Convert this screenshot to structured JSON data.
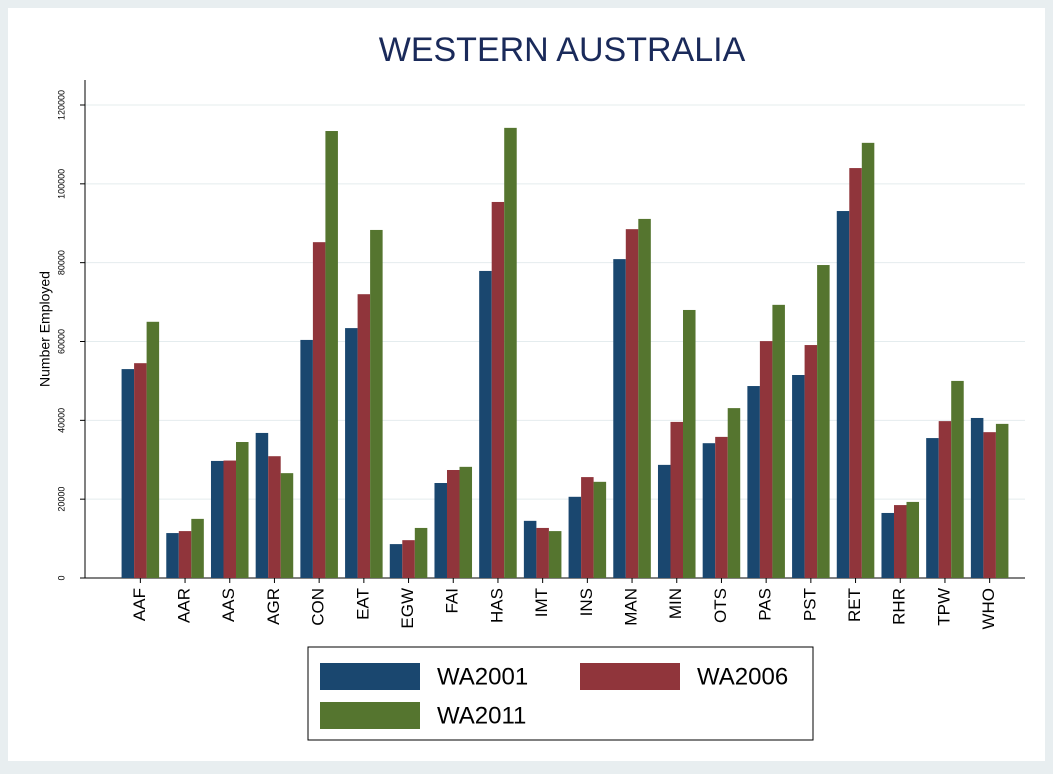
{
  "chart_data": {
    "type": "bar",
    "title": "WESTERN AUSTRALIA",
    "y_label": "Number Employed",
    "categories": [
      "AAF",
      "AAR",
      "AAS",
      "AGR",
      "CON",
      "EAT",
      "EGW",
      "FAI",
      "HAS",
      "IMT",
      "INS",
      "MAN",
      "MIN",
      "OTS",
      "PAS",
      "PST",
      "RET",
      "RHR",
      "TPW",
      "WHO"
    ],
    "series": [
      {
        "name": "WA2001",
        "color": "#1a476f",
        "values": [
          53000,
          11400,
          29700,
          36800,
          60400,
          63400,
          8600,
          24100,
          77900,
          14500,
          20600,
          80900,
          28700,
          34200,
          48700,
          51500,
          93100,
          16500,
          35500,
          40600
        ]
      },
      {
        "name": "WA2006",
        "color": "#90353b",
        "values": [
          54500,
          11900,
          29800,
          30900,
          85200,
          72000,
          9600,
          27400,
          95400,
          12700,
          25600,
          88500,
          39600,
          35800,
          60100,
          59100,
          104000,
          18500,
          39800,
          37000
        ]
      },
      {
        "name": "WA2011",
        "color": "#55752f",
        "values": [
          65000,
          15000,
          34500,
          26600,
          113400,
          88300,
          12700,
          28200,
          114200,
          11900,
          24400,
          91100,
          68000,
          43100,
          69300,
          79400,
          110400,
          19300,
          50000,
          39100
        ]
      }
    ],
    "ylim": [
      0,
      120000
    ],
    "yticks": [
      0,
      20000,
      40000,
      60000,
      80000,
      100000,
      120000
    ],
    "grid": true
  }
}
